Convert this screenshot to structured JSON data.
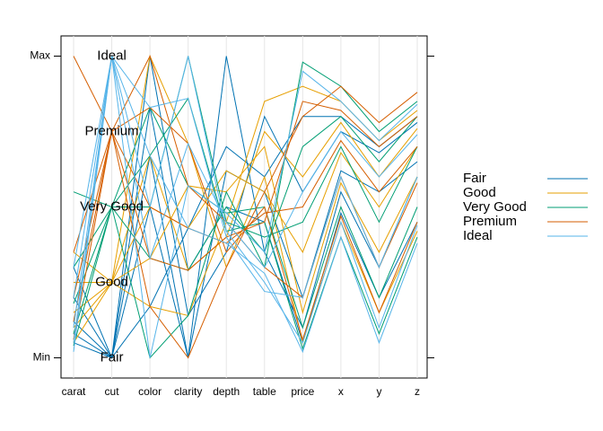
{
  "chart_data": {
    "type": "parallel",
    "categories": [
      "carat",
      "cut",
      "color",
      "clarity",
      "depth",
      "table",
      "price",
      "x",
      "y",
      "z"
    ],
    "ylim": [
      -0.067,
      1.067
    ],
    "yticks": [
      {
        "value": 0,
        "label": "Min"
      },
      {
        "value": 1,
        "label": "Max"
      }
    ],
    "legend": "right",
    "series": [
      {
        "name": "Fair",
        "color": "#0072B2",
        "lines": [
          [
            0.12,
            0,
            0.5,
            0,
            0.62,
            0.55,
            0.2,
            0.62,
            0.55,
            0.65
          ],
          [
            0.3,
            0,
            0.83,
            0.14,
            0.35,
            0.8,
            0.55,
            0.75,
            0.68,
            0.78
          ],
          [
            0.05,
            0,
            1,
            0.29,
            0.5,
            0.45,
            0.05,
            0.48,
            0.2,
            0.45
          ],
          [
            0.2,
            0,
            0.17,
            0.43,
            0.7,
            0.6,
            0.8,
            0.8,
            0.7,
            0.8
          ],
          [
            0.08,
            0,
            0.67,
            0,
            1,
            0.35,
            0.1,
            0.55,
            0.3,
            0.6
          ]
        ]
      },
      {
        "name": "Good",
        "color": "#E69F00",
        "lines": [
          [
            0.1,
            0.25,
            0.33,
            0.57,
            0.55,
            0.7,
            0.15,
            0.58,
            0.35,
            0.6
          ],
          [
            0.25,
            0.25,
            0.67,
            0.29,
            0.4,
            0.75,
            0.6,
            0.78,
            0.6,
            0.76
          ],
          [
            0.05,
            0.25,
            1,
            0.71,
            0.3,
            0.6,
            0.05,
            0.45,
            0.15,
            0.42
          ],
          [
            0.35,
            0.25,
            0.17,
            0.14,
            0.45,
            0.85,
            0.9,
            0.85,
            0.72,
            0.82
          ],
          [
            0.15,
            0.25,
            0.5,
            0.43,
            0.62,
            0.55,
            0.35,
            0.68,
            0.5,
            0.7
          ]
        ]
      },
      {
        "name": "Very Good",
        "color": "#009E73",
        "lines": [
          [
            0.08,
            0.5,
            0.83,
            0.57,
            0.48,
            0.5,
            0.1,
            0.5,
            0.2,
            0.5
          ],
          [
            0.3,
            0.5,
            0.33,
            0.29,
            0.5,
            0.35,
            0.7,
            0.8,
            0.65,
            0.8
          ],
          [
            0.18,
            0.5,
            0.5,
            1,
            0.45,
            0.4,
            0.45,
            0.7,
            0.45,
            0.7
          ],
          [
            0.55,
            0.5,
            0,
            0.14,
            0.55,
            0.3,
            0.98,
            0.9,
            0.75,
            0.85
          ],
          [
            0.04,
            0.5,
            0.67,
            0.86,
            0.42,
            0.45,
            0.03,
            0.4,
            0.08,
            0.4
          ]
        ]
      },
      {
        "name": "Premium",
        "color": "#D55E00",
        "lines": [
          [
            1,
            0.75,
            0.17,
            0,
            0.3,
            0.55,
            0.8,
            0.9,
            0.78,
            0.88
          ],
          [
            0.2,
            0.75,
            0.5,
            0.43,
            0.38,
            0.48,
            0.5,
            0.72,
            0.55,
            0.7
          ],
          [
            0.06,
            0.75,
            0.83,
            0.71,
            0.35,
            0.5,
            0.06,
            0.47,
            0.15,
            0.45
          ],
          [
            0.35,
            0.75,
            0.33,
            0.29,
            0.4,
            0.45,
            0.85,
            0.82,
            0.7,
            0.8
          ],
          [
            0.12,
            0.75,
            1,
            0.57,
            0.45,
            0.3,
            0.2,
            0.6,
            0.3,
            0.58
          ]
        ]
      },
      {
        "name": "Ideal",
        "color": "#56B4E9",
        "lines": [
          [
            0.05,
            1,
            0.5,
            1,
            0.42,
            0.25,
            0.05,
            0.45,
            0.1,
            0.44
          ],
          [
            0.2,
            1,
            0.33,
            0.71,
            0.45,
            0.3,
            0.55,
            0.75,
            0.6,
            0.74
          ],
          [
            0.1,
            1,
            0.83,
            0.86,
            0.4,
            0.22,
            0.2,
            0.6,
            0.3,
            0.6
          ],
          [
            0.3,
            1,
            0,
            0.57,
            0.48,
            0.35,
            0.95,
            0.85,
            0.72,
            0.84
          ],
          [
            0.02,
            1,
            0.67,
            0.43,
            0.38,
            0.28,
            0.02,
            0.4,
            0.05,
            0.38
          ]
        ]
      }
    ]
  }
}
